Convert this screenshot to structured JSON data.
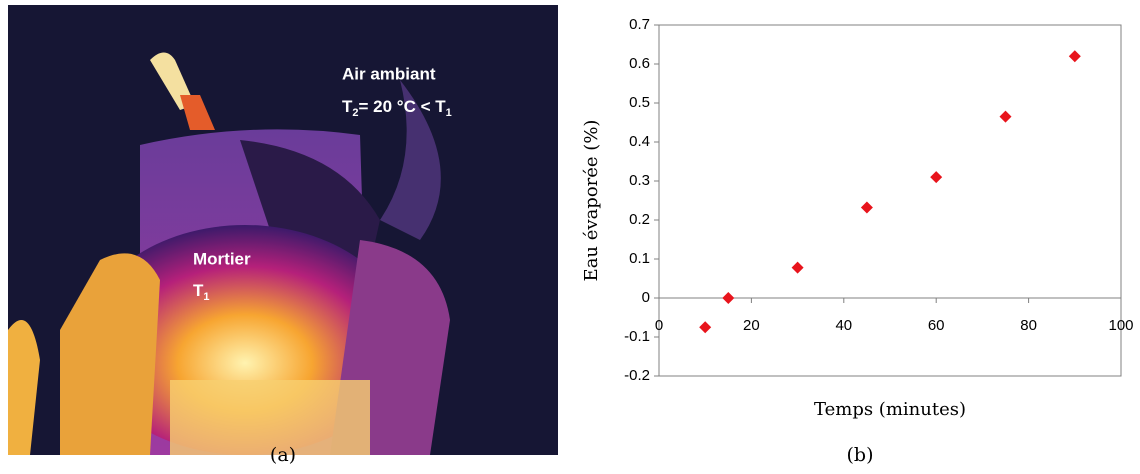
{
  "panel_a": {
    "air_label": "Air ambiant",
    "air_temp": {
      "t": "T",
      "sub": "2",
      "rest": "= 20 °C < T",
      "sub2": "1"
    },
    "mortar_label": "Mortier",
    "mortar_temp": {
      "t": "T",
      "sub": "1"
    }
  },
  "captions": [
    "(a)",
    "(b)"
  ],
  "chart_data": {
    "type": "scatter",
    "x_label": "Temps (minutes)",
    "y_label": "Eau évaporée (%)",
    "x": [
      10,
      15,
      30,
      45,
      60,
      75,
      90
    ],
    "values": [
      -0.075,
      0.0,
      0.078,
      0.232,
      0.31,
      0.465,
      0.62
    ],
    "color": "#e8141c",
    "xlim": [
      0,
      100
    ],
    "xticks": [
      0,
      20,
      40,
      60,
      80,
      100
    ],
    "ylim": [
      -0.2,
      0.7
    ],
    "yticks": [
      -0.2,
      -0.1,
      0,
      0.1,
      0.2,
      0.3,
      0.4,
      0.5,
      0.6,
      0.7
    ]
  }
}
